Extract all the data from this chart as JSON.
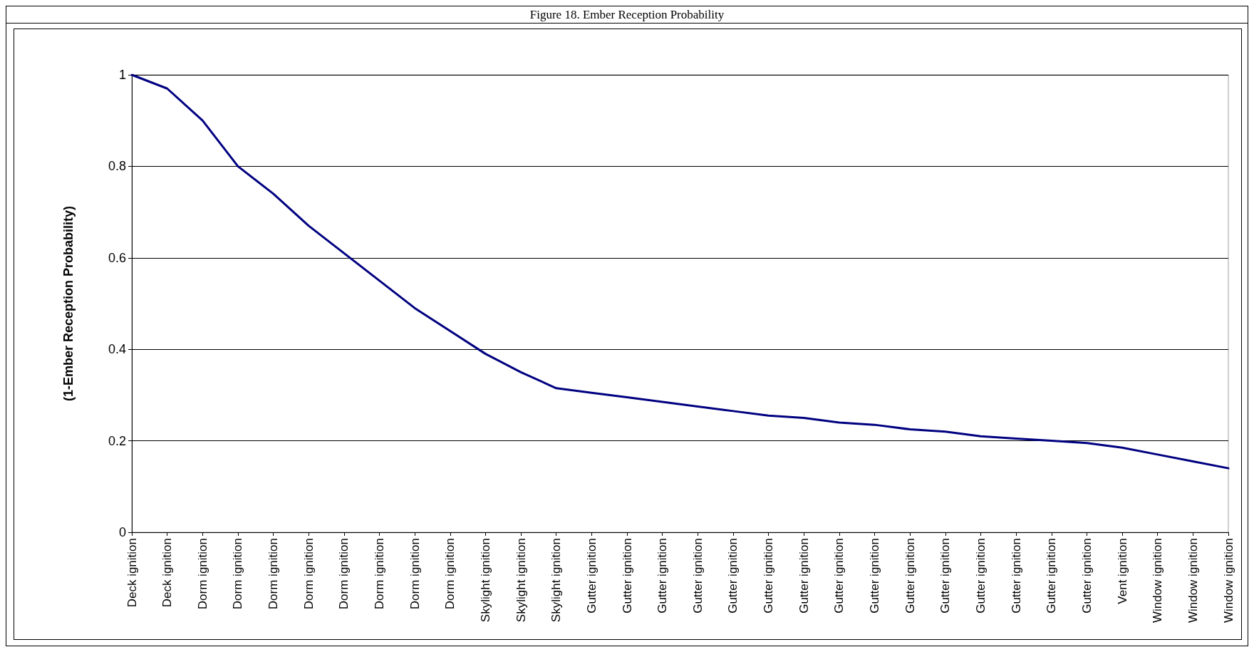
{
  "chart_data": {
    "type": "line",
    "title": "Figure 18. Ember Reception Probability",
    "ylabel": "(1-Ember Reception Probability)",
    "categories": [
      "Deck ignition",
      "Deck ignition",
      "Dorm ignition",
      "Dorm ignition",
      "Dorm ignition",
      "Dorm ignition",
      "Dorm ignition",
      "Dorm ignition",
      "Dorm ignition",
      "Dorm ignition",
      "Skylight ignition",
      "Skylight ignition",
      "Skylight ignition",
      "Gutter ignition",
      "Gutter ignition",
      "Gutter ignition",
      "Gutter ignition",
      "Gutter ignition",
      "Gutter ignition",
      "Gutter ignition",
      "Gutter ignition",
      "Gutter ignition",
      "Gutter ignition",
      "Gutter ignition",
      "Gutter ignition",
      "Gutter ignition",
      "Gutter ignition",
      "Gutter ignition",
      "Vent ignition",
      "Window ignition",
      "Window ignition",
      "Window ignition"
    ],
    "series": [
      {
        "color": "#000080",
        "values": [
          1.0,
          0.97,
          0.9,
          0.8,
          0.74,
          0.67,
          0.61,
          0.55,
          0.49,
          0.44,
          0.39,
          0.35,
          0.315,
          0.305,
          0.295,
          0.285,
          0.275,
          0.265,
          0.255,
          0.25,
          0.24,
          0.235,
          0.225,
          0.22,
          0.21,
          0.205,
          0.2,
          0.195,
          0.185,
          0.17,
          0.155,
          0.14
        ]
      }
    ],
    "ylim": [
      0,
      1
    ],
    "yticks": [
      0,
      0.2,
      0.4,
      0.6,
      0.8,
      1
    ],
    "grid": "y",
    "marker": "none",
    "line_style": "solid"
  }
}
